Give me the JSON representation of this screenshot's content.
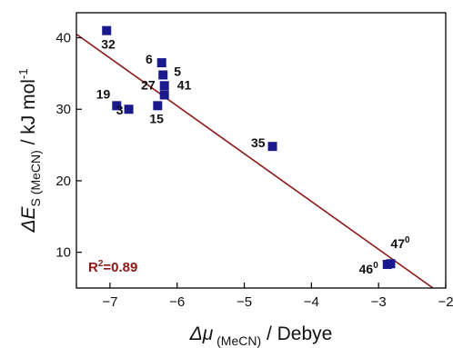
{
  "chart_data": {
    "type": "scatter",
    "xlabel": {
      "symbol": "Δμ",
      "subscript": "(MeCN)",
      "suffix": "/ Debye"
    },
    "ylabel": {
      "symbol": "ΔE",
      "subscript": "S (MeCN)",
      "suffix": "/ kJ mol",
      "superscript": "-1"
    },
    "xlim": [
      -7.5,
      -2.0
    ],
    "ylim": [
      5,
      43.5
    ],
    "x_ticks": [
      -7,
      -6,
      -5,
      -4,
      -3,
      -2
    ],
    "y_ticks": [
      10,
      20,
      30,
      40
    ],
    "points": [
      {
        "label": "32",
        "x": -7.05,
        "y": 41.0
      },
      {
        "label": "6",
        "x": -6.23,
        "y": 36.5
      },
      {
        "label": "5",
        "x": -6.21,
        "y": 34.8
      },
      {
        "label": "41",
        "x": -6.19,
        "y": 33.3
      },
      {
        "label": "27",
        "x": -6.19,
        "y": 32.0
      },
      {
        "label": "19",
        "x": -6.9,
        "y": 30.5
      },
      {
        "label": "3",
        "x": -6.72,
        "y": 30.0
      },
      {
        "label": "15",
        "x": -6.29,
        "y": 30.5
      },
      {
        "label": "35",
        "x": -4.58,
        "y": 24.8
      },
      {
        "label": "46",
        "label_sup": "0",
        "x": -2.87,
        "y": 8.3
      },
      {
        "label": "47",
        "label_sup": "0",
        "x": -2.82,
        "y": 8.4
      }
    ],
    "fit_line": {
      "x": [
        -7.5,
        -2.19
      ],
      "y": [
        40.5,
        5.0
      ]
    },
    "annotation": {
      "R": "R",
      "sup": "2",
      "rest": "=0.89"
    },
    "colors": {
      "markers": "#1a1a8c",
      "fit_line": "#8b1a1a",
      "annotation": "#8b1a1a",
      "axes": "#000000"
    },
    "grid": false,
    "legend": "none"
  }
}
